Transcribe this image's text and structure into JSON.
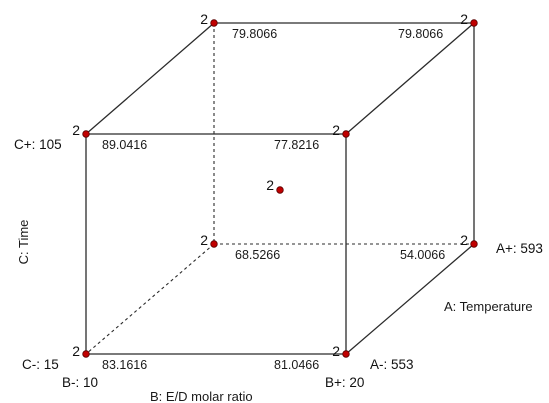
{
  "diagram": {
    "colors": {
      "edge": "#2b2b2b",
      "point": "#c00000"
    },
    "corner_counts": {
      "back_top_left": "2",
      "back_top_right": "2",
      "front_top_left": "2",
      "front_top_right": "2",
      "center": "2",
      "back_bottom_left": "2",
      "back_bottom_right": "2",
      "front_bottom_left": "2",
      "front_bottom_right": "2"
    },
    "corner_values": {
      "back_top_left": "79.8066",
      "back_top_right": "79.8066",
      "front_top_left": "89.0416",
      "front_top_right": "77.8216",
      "back_bottom_left": "68.5266",
      "back_bottom_right": "54.0066",
      "front_bottom_left": "83.1616",
      "front_bottom_right": "81.0466"
    },
    "factor_levels": {
      "c_high": "C+: 105",
      "c_low": "C-: 15",
      "a_high": "A+: 593",
      "a_low": "A-: 553",
      "b_low": "B-: 10",
      "b_high": "B+: 20"
    },
    "axis_labels": {
      "c": "C: Time",
      "a": "A: Temperature",
      "b": "B: E/D molar ratio"
    }
  }
}
